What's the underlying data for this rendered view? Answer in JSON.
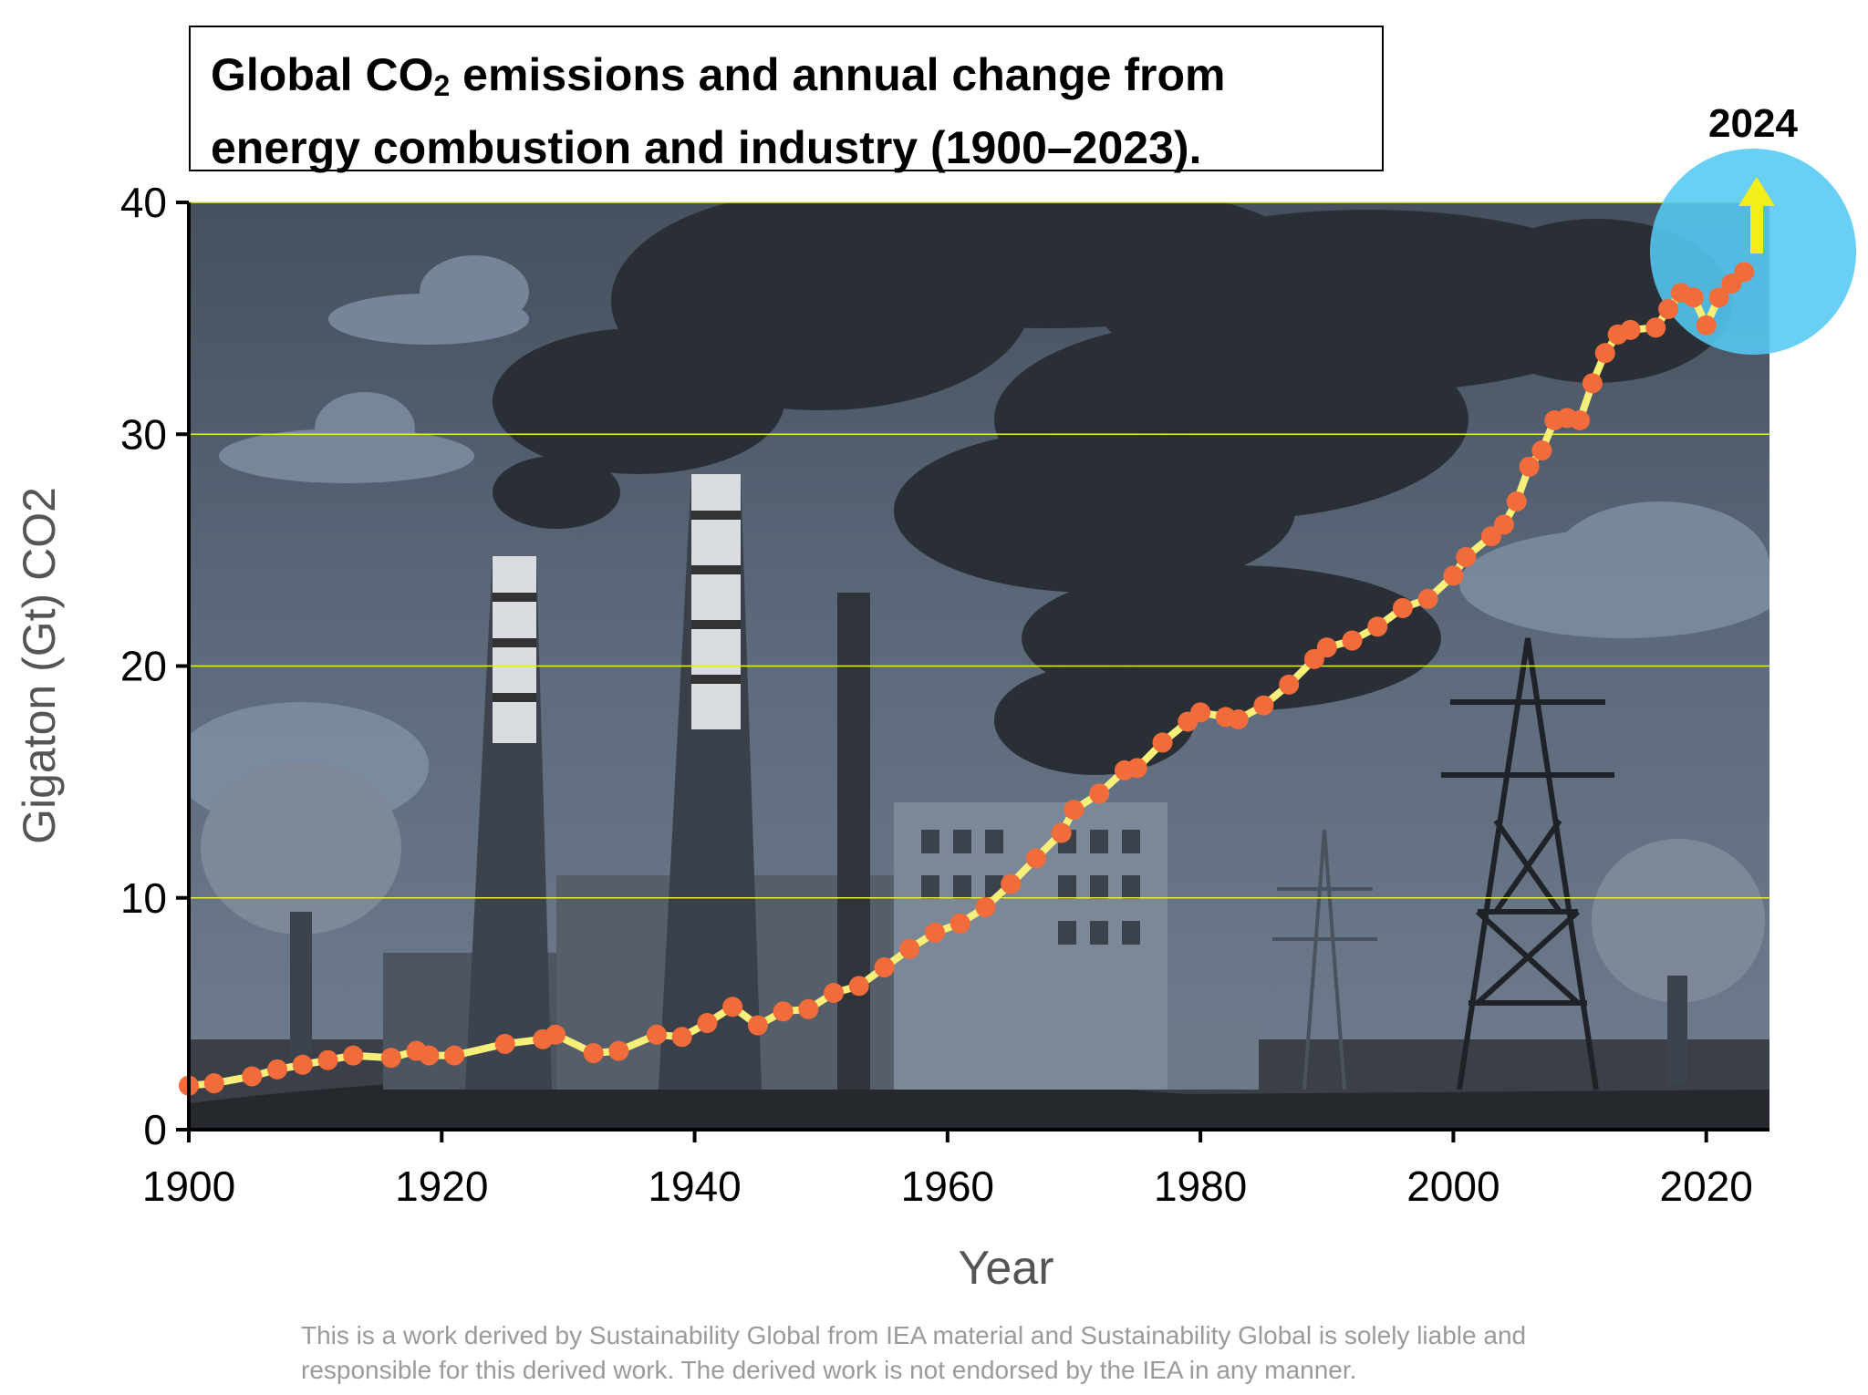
{
  "title": {
    "line1_before": "Global CO",
    "line1_sub": "2",
    "line1_after": " emissions and annual change from",
    "line2": "energy combustion and industry (1900–2023)."
  },
  "footnote": {
    "line1": "This is a work derived by Sustainability Global from IEA material and Sustainability Global is solely liable and",
    "line2": "responsible for this derived work. The derived work is not endorsed by the IEA in any manner."
  },
  "colors": {
    "line": "#f6f07a",
    "marker": "#f26b3a",
    "gridline": "#e6ec3a",
    "highlight_circle": "#55c8f2",
    "arrow": "#f3ee1a",
    "background_sky": "#5d6b7d"
  },
  "chart_data": {
    "type": "line",
    "title": "Global CO2 emissions and annual change from energy combustion and industry (1900–2023).",
    "xlabel": "Year",
    "ylabel": "Gigaton (Gt) CO2",
    "xlim": [
      1900,
      2025
    ],
    "ylim": [
      0,
      40
    ],
    "xticks": [
      1900,
      1920,
      1940,
      1960,
      1980,
      2000,
      2020
    ],
    "yticks": [
      0,
      10,
      20,
      30,
      40
    ],
    "grid": "horizontal",
    "highlight": {
      "label": "2024",
      "year": 2024,
      "direction": "up"
    },
    "x": [
      1900,
      1902,
      1905,
      1907,
      1909,
      1911,
      1913,
      1916,
      1918,
      1919,
      1921,
      1925,
      1928,
      1929,
      1932,
      1934,
      1937,
      1939,
      1941,
      1943,
      1945,
      1947,
      1949,
      1951,
      1953,
      1955,
      1957,
      1959,
      1961,
      1963,
      1965,
      1967,
      1969,
      1970,
      1972,
      1974,
      1975,
      1977,
      1979,
      1980,
      1982,
      1983,
      1985,
      1987,
      1989,
      1990,
      1992,
      1994,
      1996,
      1998,
      2000,
      2001,
      2003,
      2004,
      2005,
      2006,
      2007,
      2008,
      2009,
      2010,
      2011,
      2012,
      2013,
      2014,
      2016,
      2017,
      2018,
      2019,
      2020,
      2021,
      2022,
      2023
    ],
    "series": [
      {
        "values": [
          1.9,
          2.0,
          2.3,
          2.6,
          2.8,
          3.0,
          3.2,
          3.1,
          3.4,
          3.2,
          3.2,
          3.7,
          3.9,
          4.1,
          3.3,
          3.4,
          4.1,
          4.0,
          4.6,
          5.3,
          4.5,
          5.1,
          5.2,
          5.9,
          6.2,
          7.0,
          7.8,
          8.5,
          8.9,
          9.6,
          10.6,
          11.7,
          12.8,
          13.8,
          14.5,
          15.5,
          15.6,
          16.7,
          17.6,
          18.0,
          17.8,
          17.7,
          18.3,
          19.2,
          20.3,
          20.8,
          21.1,
          21.7,
          22.5,
          22.9,
          23.9,
          24.7,
          25.6,
          26.1,
          27.1,
          28.6,
          29.3,
          30.6,
          30.7,
          30.6,
          32.2,
          33.5,
          34.3,
          34.5,
          34.6,
          35.4,
          36.1,
          35.9,
          34.7,
          35.9,
          36.5,
          37.0
        ]
      }
    ]
  }
}
